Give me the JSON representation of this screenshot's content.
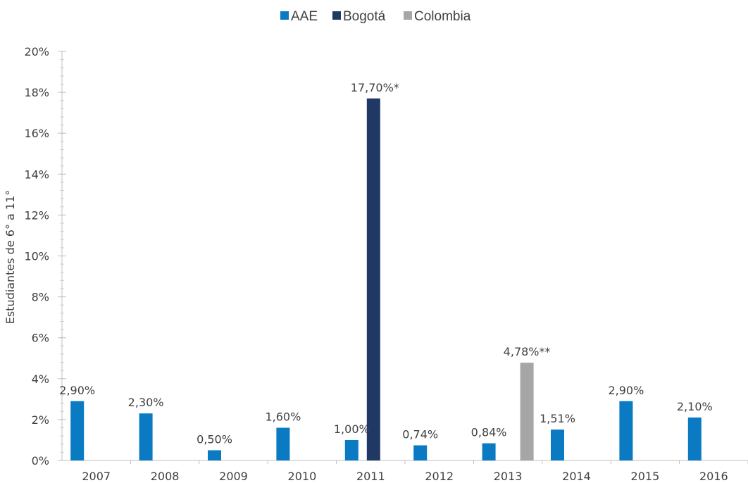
{
  "chart_data": {
    "type": "bar",
    "categories": [
      "2007",
      "2008",
      "2009",
      "2010",
      "2011",
      "2012",
      "2013",
      "2014",
      "2015",
      "2016"
    ],
    "series": [
      {
        "name": "AAE",
        "color": "#0a7bc2",
        "values": [
          2.9,
          2.3,
          0.5,
          1.6,
          1.0,
          0.74,
          0.84,
          1.51,
          2.9,
          2.1
        ],
        "labels": [
          "2,90%",
          "2,30%",
          "0,50%",
          "1,60%",
          "1,00%",
          "0,74%",
          "0,84%",
          "1,51%",
          "2,90%",
          "2,10%"
        ]
      },
      {
        "name": "Bogotá",
        "color": "#1f3864",
        "values": [
          null,
          null,
          null,
          null,
          17.7,
          null,
          null,
          null,
          null,
          null
        ],
        "labels": [
          null,
          null,
          null,
          null,
          "17,70%*",
          null,
          null,
          null,
          null,
          null
        ]
      },
      {
        "name": "Colombia",
        "color": "#a6a6a6",
        "values": [
          null,
          null,
          null,
          null,
          null,
          null,
          4.78,
          null,
          null,
          null
        ],
        "labels": [
          null,
          null,
          null,
          null,
          null,
          null,
          "4,78%**",
          null,
          null,
          null
        ]
      }
    ],
    "ylabel": "Estudiantes de 6° a 11°",
    "xlabel": "",
    "ylim": [
      0,
      20
    ],
    "yticks": [
      0,
      2,
      4,
      6,
      8,
      10,
      12,
      14,
      16,
      18,
      20
    ],
    "ytick_labels": [
      "0%",
      "2%",
      "4%",
      "6%",
      "8%",
      "10%",
      "12%",
      "14%",
      "16%",
      "18%",
      "20%"
    ],
    "legend_position": "top-center",
    "grid": false
  }
}
